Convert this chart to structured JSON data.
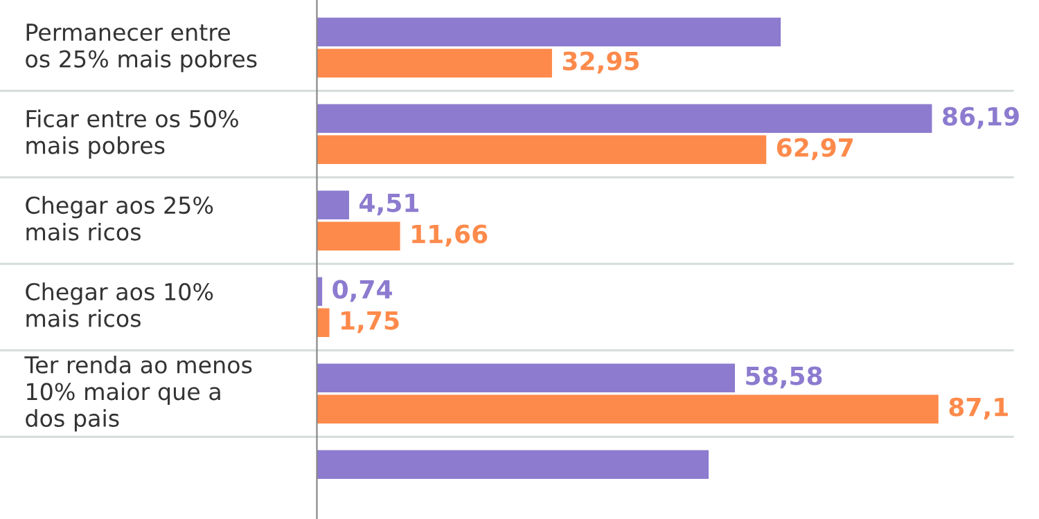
{
  "chart_data": {
    "type": "bar",
    "orientation": "horizontal",
    "tick_labels": "y",
    "categories": [
      "Permanecer entre\nos 25% mais pobres",
      "Ficar entre os 50%\nmais pobres",
      "Chegar aos 25%\nmais ricos",
      "Chegar aos 10%\nmais ricos",
      "Ter renda ao menos\n10% maior que a\ndos pais",
      null
    ],
    "series": [
      {
        "color": "#8c7bcf",
        "values": [
          65.0,
          86.19,
          4.51,
          0.74,
          58.58,
          54.9
        ],
        "value_labels": [
          null,
          "86,19",
          "4,51",
          "0,74",
          "58,58",
          null
        ]
      },
      {
        "color": "#fd8a4b",
        "values": [
          32.95,
          62.97,
          11.66,
          1.75,
          87.1,
          null
        ],
        "value_labels": [
          "32,95",
          "62,97",
          "11,66",
          "1,75",
          "87,1",
          null
        ]
      }
    ]
  }
}
